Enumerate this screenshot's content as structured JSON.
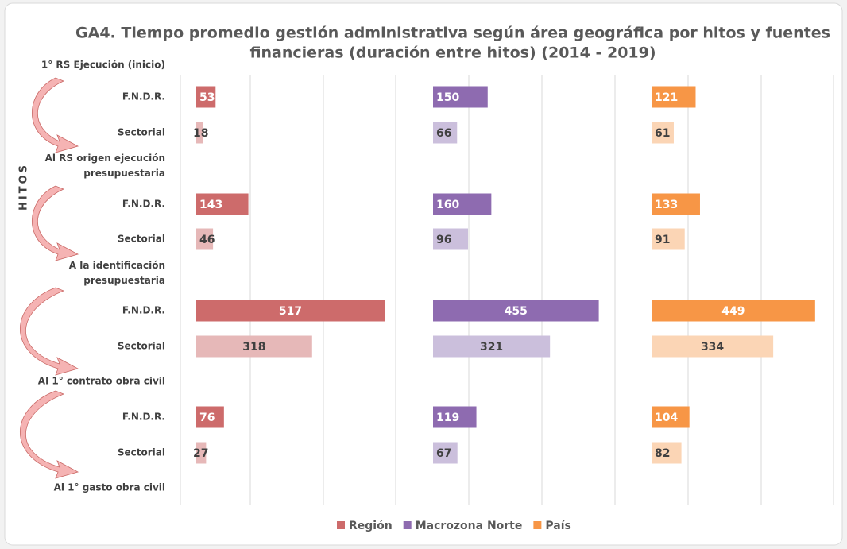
{
  "chart_data": {
    "type": "bar",
    "title": [
      "GA4. Tiempo promedio gestión administrativa según área geográfica por hitos y fuentes",
      "financieras (duración entre hitos) (2014 - 2019)"
    ],
    "y_label": "HITOS",
    "milestones": [
      [
        "1° RS Ejecución (inicio)"
      ],
      [
        "Al RS origen ejecución",
        "presupuestaria"
      ],
      [
        "A la identificación",
        "presupuestaria"
      ],
      [
        "Al 1° contrato obra civil"
      ],
      [
        "Al 1° gasto obra civil"
      ]
    ],
    "categories": [
      "F.N.D.R.",
      "Sectorial",
      "F.N.D.R.",
      "Sectorial",
      "F.N.D.R.",
      "Sectorial",
      "F.N.D.R.",
      "Sectorial"
    ],
    "xlim": [
      0,
      650
    ],
    "series": [
      {
        "name": "Región",
        "colors": [
          "#cd6b6b",
          "#e6b8b8"
        ],
        "values": [
          53,
          18,
          143,
          46,
          517,
          318,
          76,
          27
        ]
      },
      {
        "name": "Macrozona Norte",
        "colors": [
          "#8e6bb0",
          "#cbbfdc"
        ],
        "values": [
          150,
          66,
          160,
          96,
          455,
          321,
          119,
          67
        ]
      },
      {
        "name": "País",
        "colors": [
          "#f79646",
          "#fbd5b5"
        ],
        "values": [
          121,
          61,
          133,
          91,
          449,
          334,
          104,
          82
        ]
      }
    ]
  }
}
